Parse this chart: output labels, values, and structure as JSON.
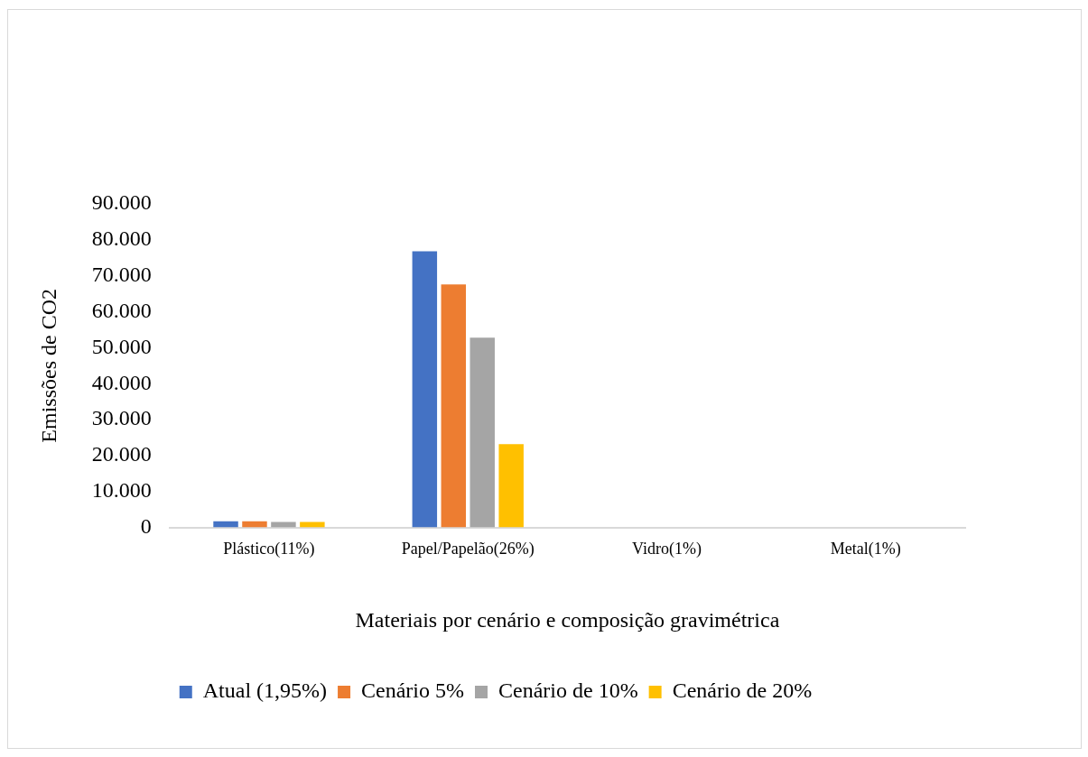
{
  "chart_data": {
    "type": "bar",
    "xlabel": "Materiais por cenário e composição gravimétrica",
    "ylabel": "Emissões de CO2",
    "categories": [
      "Plástico(11%)",
      "Papel/Papelão(26%)",
      "Vidro(1%)",
      "Metal(1%)"
    ],
    "series": [
      {
        "name": "Atual (1,95%)",
        "color": "#4472c4",
        "values": [
          1700,
          76800,
          0,
          0
        ]
      },
      {
        "name": "Cenário 5%",
        "color": "#ed7d31",
        "values": [
          1700,
          67600,
          0,
          0
        ]
      },
      {
        "name": "Cenário de 10%",
        "color": "#a5a5a5",
        "values": [
          1500,
          52800,
          0,
          0
        ]
      },
      {
        "name": "Cenário de 20%",
        "color": "#ffc000",
        "values": [
          1500,
          23200,
          0,
          0
        ]
      }
    ],
    "ylim": [
      0,
      90000
    ],
    "yticks": [
      {
        "value": 0,
        "label": "0"
      },
      {
        "value": 10000,
        "label": "10.000"
      },
      {
        "value": 20000,
        "label": "20.000"
      },
      {
        "value": 30000,
        "label": "30.000"
      },
      {
        "value": 40000,
        "label": "40.000"
      },
      {
        "value": 50000,
        "label": "50.000"
      },
      {
        "value": 60000,
        "label": "60.000"
      },
      {
        "value": 70000,
        "label": "70.000"
      },
      {
        "value": 80000,
        "label": "80.000"
      },
      {
        "value": 90000,
        "label": "90.000"
      }
    ],
    "grid": false,
    "legend": "bottom"
  }
}
